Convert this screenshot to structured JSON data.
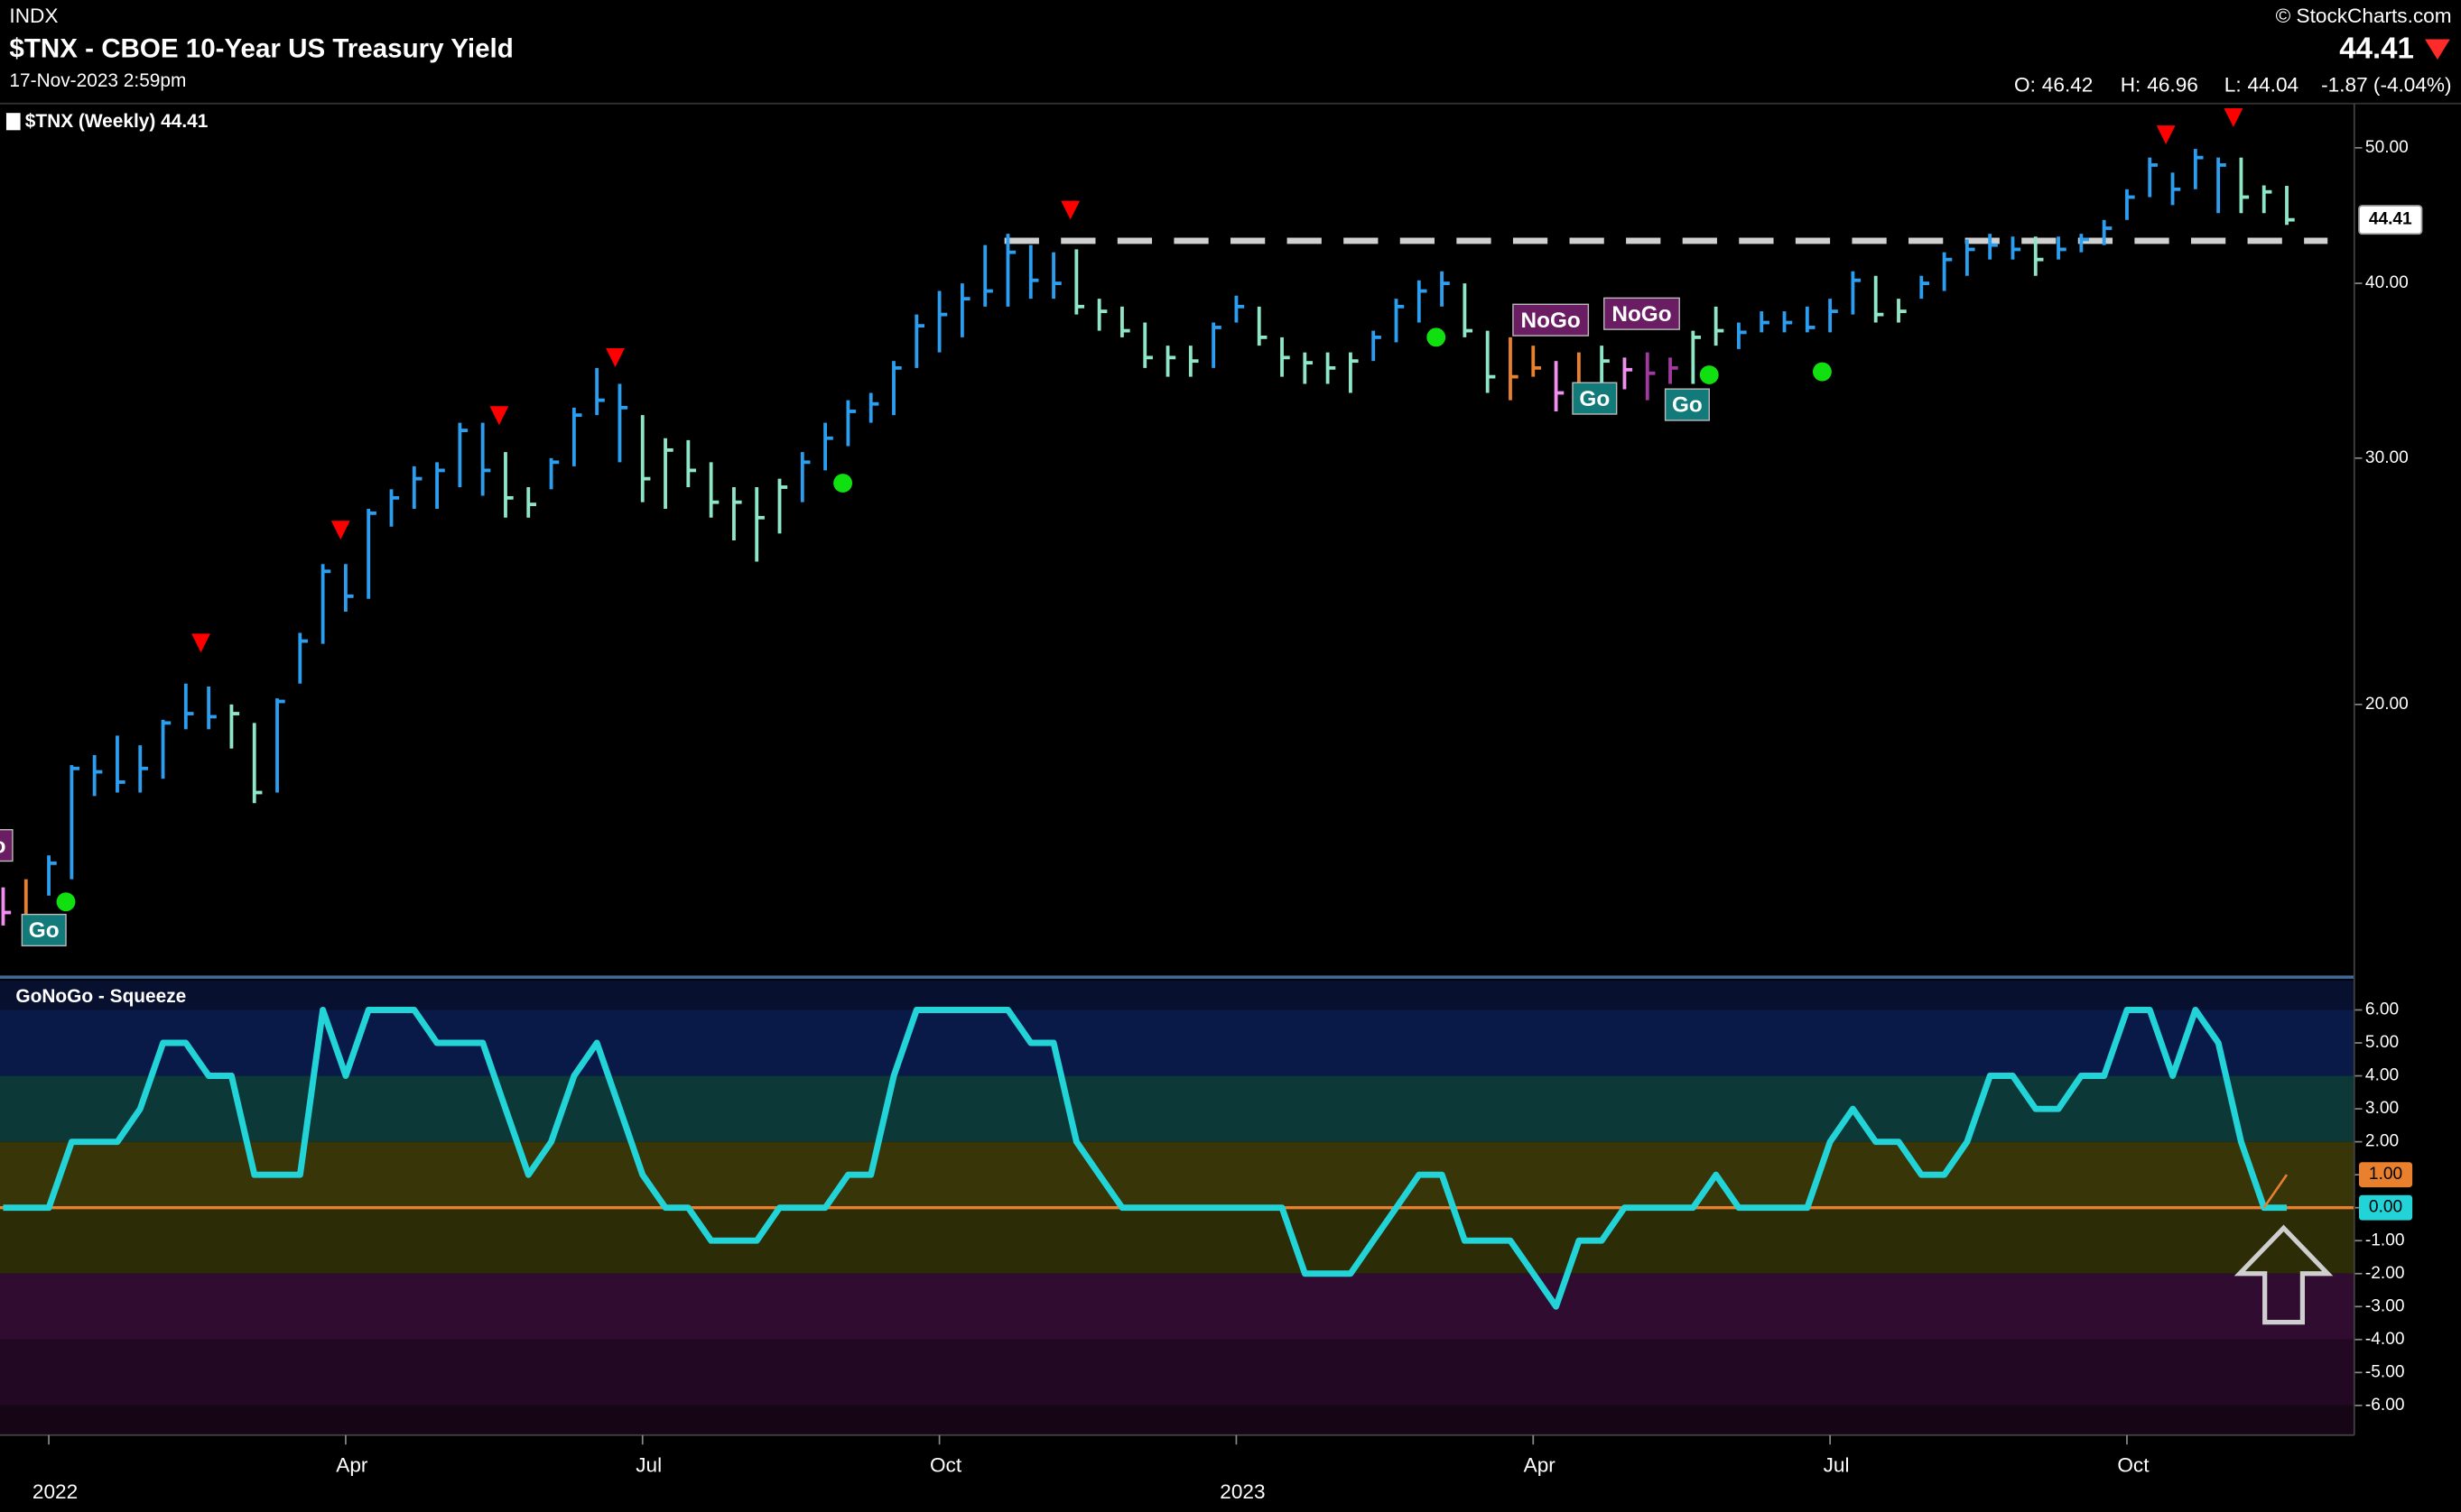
{
  "header": {
    "exchange": "INDX",
    "title": "$TNX - CBOE 10-Year US Treasury Yield",
    "date": "17-Nov-2023 2:59pm",
    "credit": "© StockCharts.com",
    "open_label": "O:",
    "open": 46.42,
    "high_label": "H:",
    "low_label": "L:",
    "change": "-1.87 (-4.04%)"
  },
  "chart_data": [
    {
      "type": "ohlc",
      "label": "$TNX (Weekly) 44.41",
      "log": true,
      "ylim": [
        12.8,
        53.5
      ],
      "yticks": [
        {
          "value": 50,
          "label": "50.00"
        },
        {
          "value": 40,
          "label": "40.00"
        },
        {
          "value": 30,
          "label": "30.00"
        },
        {
          "value": 20,
          "label": "20.00"
        }
      ],
      "hline": 42.9,
      "categories": [
        null,
        null,
        "2022",
        null,
        null,
        null,
        null,
        null,
        null,
        null,
        null,
        null,
        null,
        null,
        null,
        "Apr",
        null,
        null,
        null,
        null,
        null,
        null,
        null,
        null,
        null,
        null,
        null,
        null,
        "Jul",
        null,
        null,
        null,
        null,
        null,
        null,
        null,
        null,
        null,
        null,
        null,
        null,
        "Oct",
        null,
        null,
        null,
        null,
        null,
        null,
        null,
        null,
        null,
        null,
        null,
        null,
        "2023",
        null,
        null,
        null,
        null,
        null,
        null,
        null,
        null,
        null,
        null,
        null,
        null,
        "Apr",
        null,
        null,
        null,
        null,
        null,
        null,
        null,
        null,
        null,
        null,
        null,
        null,
        "Jul",
        null,
        null,
        null,
        null,
        null,
        null,
        null,
        null,
        null,
        null,
        null,
        null,
        "Oct",
        null,
        null,
        null,
        null,
        null,
        null,
        null
      ],
      "high": [
        14.8,
        15.0,
        15.6,
        18.1,
        18.4,
        19.0,
        18.7,
        19.5,
        20.7,
        20.6,
        20.0,
        19.4,
        20.2,
        22.5,
        25.2,
        25.2,
        27.6,
        28.5,
        29.6,
        29.8,
        31.8,
        31.8,
        30.3,
        28.6,
        30.0,
        32.6,
        34.8,
        33.9,
        32.2,
        31.0,
        30.9,
        29.8,
        28.6,
        28.6,
        29.0,
        30.3,
        31.8,
        33.0,
        33.4,
        35.2,
        38.0,
        39.5,
        40.0,
        42.6,
        43.4,
        42.6,
        42.1,
        42.3,
        39.0,
        38.5,
        37.5,
        36.1,
        36.1,
        37.5,
        39.2,
        38.5,
        36.6,
        35.7,
        35.7,
        35.7,
        37.0,
        39.0,
        40.2,
        40.8,
        40.0,
        37.0,
        36.6,
        36.1,
        35.2,
        35.7,
        36.1,
        35.4,
        35.7,
        35.4,
        37.0,
        38.5,
        37.5,
        38.2,
        38.2,
        38.5,
        39.0,
        40.8,
        40.5,
        39.0,
        40.5,
        42.1,
        43.0,
        43.4,
        43.2,
        43.2,
        43.2,
        43.4,
        44.4,
        46.7,
        49.2,
        48.0,
        49.9,
        49.2,
        49.2,
        47.0,
        46.96
      ],
      "low": [
        13.9,
        13.8,
        14.6,
        15.0,
        17.2,
        17.3,
        17.3,
        17.7,
        19.2,
        19.2,
        18.6,
        17.0,
        17.3,
        20.7,
        22.1,
        23.3,
        23.8,
        26.8,
        27.6,
        27.6,
        28.6,
        28.2,
        27.2,
        27.2,
        28.5,
        29.6,
        32.2,
        29.8,
        27.9,
        27.6,
        28.6,
        27.2,
        26.2,
        25.3,
        26.5,
        27.9,
        29.4,
        30.6,
        31.8,
        32.2,
        34.8,
        35.7,
        36.6,
        38.5,
        38.5,
        39.0,
        39.0,
        38.0,
        37.0,
        36.6,
        34.8,
        34.3,
        34.3,
        34.8,
        37.5,
        36.1,
        34.3,
        33.9,
        33.9,
        33.4,
        35.2,
        36.3,
        37.5,
        38.5,
        36.6,
        33.4,
        33.0,
        34.3,
        32.4,
        33.0,
        33.9,
        33.6,
        33.0,
        33.9,
        33.9,
        36.1,
        35.9,
        36.9,
        36.9,
        36.9,
        36.9,
        38.0,
        37.5,
        37.5,
        39.0,
        39.5,
        40.5,
        41.6,
        41.6,
        40.5,
        41.6,
        42.1,
        42.6,
        44.4,
        46.1,
        45.5,
        46.7,
        44.9,
        44.9,
        44.9,
        44.04
      ],
      "close": [
        14.2,
        13.9,
        15.4,
        18.0,
        17.9,
        17.6,
        18.0,
        19.4,
        19.7,
        19.6,
        19.7,
        17.3,
        20.1,
        22.2,
        24.9,
        23.9,
        27.4,
        28.1,
        29.0,
        29.4,
        31.4,
        29.4,
        28.1,
        27.8,
        29.8,
        32.2,
        33.0,
        32.6,
        29.0,
        30.4,
        29.4,
        27.9,
        27.9,
        27.2,
        28.6,
        29.8,
        31.0,
        32.4,
        32.8,
        34.8,
        37.3,
        38.0,
        39.0,
        39.5,
        42.1,
        40.2,
        40.0,
        38.5,
        38.2,
        37.0,
        35.4,
        35.4,
        35.2,
        37.2,
        38.5,
        36.6,
        35.4,
        35.1,
        34.8,
        35.2,
        36.6,
        38.5,
        39.5,
        40.0,
        37.0,
        34.3,
        34.3,
        34.8,
        33.4,
        33.9,
        35.2,
        34.7,
        34.5,
        34.8,
        36.6,
        37.0,
        36.9,
        37.5,
        37.5,
        37.2,
        38.2,
        40.2,
        38.0,
        38.2,
        40.0,
        41.6,
        42.3,
        42.6,
        42.3,
        41.6,
        42.3,
        43.0,
        43.8,
        46.1,
        48.6,
        46.7,
        49.2,
        48.6,
        46.1,
        46.5,
        44.41
      ],
      "colors": [
        "#f08ff0",
        "#e8802e",
        "#2b9ef0",
        "#2b9ef0",
        "#2b9ef0",
        "#2b9ef0",
        "#2b9ef0",
        "#2b9ef0",
        "#2b9ef0",
        "#2b9ef0",
        "#8ee6c6",
        "#8ee6c6",
        "#2b9ef0",
        "#2b9ef0",
        "#2b9ef0",
        "#2b9ef0",
        "#2b9ef0",
        "#2b9ef0",
        "#2b9ef0",
        "#2b9ef0",
        "#2b9ef0",
        "#2b9ef0",
        "#8ee6c6",
        "#8ee6c6",
        "#2b9ef0",
        "#2b9ef0",
        "#2b9ef0",
        "#2b9ef0",
        "#8ee6c6",
        "#8ee6c6",
        "#8ee6c6",
        "#8ee6c6",
        "#8ee6c6",
        "#8ee6c6",
        "#8ee6c6",
        "#2b9ef0",
        "#2b9ef0",
        "#2b9ef0",
        "#2b9ef0",
        "#2b9ef0",
        "#2b9ef0",
        "#2b9ef0",
        "#2b9ef0",
        "#2b9ef0",
        "#2b9ef0",
        "#2b9ef0",
        "#2b9ef0",
        "#8ee6c6",
        "#8ee6c6",
        "#8ee6c6",
        "#8ee6c6",
        "#8ee6c6",
        "#8ee6c6",
        "#2b9ef0",
        "#2b9ef0",
        "#8ee6c6",
        "#8ee6c6",
        "#8ee6c6",
        "#8ee6c6",
        "#8ee6c6",
        "#2b9ef0",
        "#2b9ef0",
        "#2b9ef0",
        "#2b9ef0",
        "#8ee6c6",
        "#8ee6c6",
        "#e8802e",
        "#e8802e",
        "#f08ff0",
        "#e8802e",
        "#8ee6c6",
        "#f08ff0",
        "#a03aa0",
        "#a03aa0",
        "#8ee6c6",
        "#8ee6c6",
        "#2b9ef0",
        "#2b9ef0",
        "#2b9ef0",
        "#2b9ef0",
        "#2b9ef0",
        "#2b9ef0",
        "#8ee6c6",
        "#8ee6c6",
        "#2b9ef0",
        "#2b9ef0",
        "#2b9ef0",
        "#2b9ef0",
        "#2b9ef0",
        "#8ee6c6",
        "#2b9ef0",
        "#2b9ef0",
        "#2b9ef0",
        "#2b9ef0",
        "#2b9ef0",
        "#2b9ef0",
        "#2b9ef0",
        "#2b9ef0",
        "#8ee6c6",
        "#8ee6c6",
        "#8ee6c6"
      ],
      "annotations": [
        "Go",
        "Go",
        "NoGo",
        "NoGo",
        "Go",
        "Go"
      ]
    },
    {
      "type": "line",
      "title": "GoNoGo - Squeeze",
      "color": "#22d3d8",
      "squeeze_color": "#e8802e",
      "ylim": [
        -6.9,
        6.9
      ],
      "yticks": [
        {
          "value": 6,
          "label": "6.00"
        },
        {
          "value": 5,
          "label": "5.00"
        },
        {
          "value": 4,
          "label": "4.00"
        },
        {
          "value": 3,
          "label": "3.00"
        },
        {
          "value": 2,
          "label": "2.00"
        },
        {
          "value": 1,
          "label": "1.00"
        },
        {
          "value": 0,
          "label": "0.00"
        },
        {
          "value": -1,
          "label": "-1.00"
        },
        {
          "value": -2,
          "label": "-2.00"
        },
        {
          "value": -3,
          "label": "-3.00"
        },
        {
          "value": -4,
          "label": "-4.00"
        },
        {
          "value": -5,
          "label": "-5.00"
        },
        {
          "value": -6,
          "label": "-6.00"
        }
      ],
      "values": [
        0,
        0,
        0,
        2,
        2,
        2,
        3,
        5,
        5,
        4,
        4,
        1,
        1,
        1,
        6,
        4,
        6,
        6,
        6,
        5,
        5,
        5,
        3,
        1,
        2,
        4,
        5,
        3,
        1,
        0,
        0,
        -1,
        -1,
        -1,
        0,
        0,
        0,
        1,
        1,
        4,
        6,
        6,
        6,
        6,
        6,
        5,
        5,
        2,
        1,
        0,
        0,
        0,
        0,
        0,
        0,
        0,
        0,
        -2,
        -2,
        -2,
        -1,
        0,
        1,
        1,
        -1,
        -1,
        -1,
        -2,
        -3,
        -1,
        -1,
        0,
        0,
        0,
        0,
        1,
        0,
        0,
        0,
        0,
        2,
        3,
        2,
        2,
        1,
        1,
        2,
        4,
        4,
        3,
        3,
        4,
        4,
        6,
        6,
        4,
        6,
        5,
        2,
        0,
        0
      ],
      "last": {
        "value": 0,
        "label": "0.00"
      },
      "squeeze_last": {
        "value": 1,
        "label": "1.00"
      }
    }
  ]
}
